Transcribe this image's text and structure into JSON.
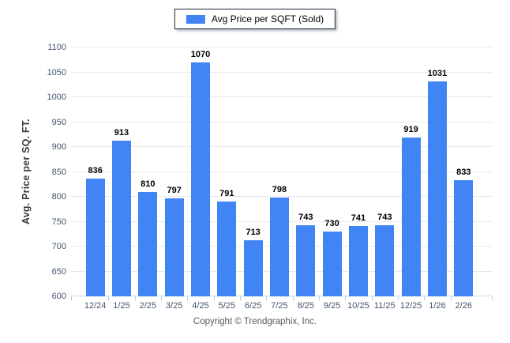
{
  "legend": {
    "label": "Avg Price per SQFT (Sold)"
  },
  "footer": {
    "copyright": "Copyright © Trendgraphix, Inc."
  },
  "colors": {
    "bar": "#4184f3",
    "grid": "#e7e9ec",
    "tick_label": "#44546a",
    "value_label": "#000000",
    "legend_border": "#1f2c3a",
    "corner_tint": "#dbe4ef"
  },
  "chart_data": {
    "type": "bar",
    "title": "Avg Price per SQFT (Sold)",
    "categories": [
      "12/24",
      "1/25",
      "2/25",
      "3/25",
      "4/25",
      "5/25",
      "6/25",
      "7/25",
      "8/25",
      "9/25",
      "10/25",
      "11/25",
      "12/25",
      "1/26",
      "2/26"
    ],
    "values": [
      836,
      913,
      810,
      797,
      1070,
      791,
      713,
      798,
      743,
      730,
      741,
      743,
      919,
      1031,
      833
    ],
    "xlabel": "",
    "ylabel": "Avg. Price per SQ. FT.",
    "ylim": [
      600,
      1100
    ],
    "ytick_step": 50,
    "grid": true,
    "legend_position": "top-center"
  }
}
